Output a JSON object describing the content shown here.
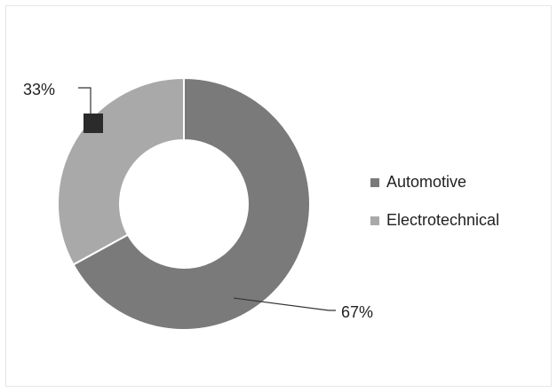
{
  "chart_data": {
    "type": "pie",
    "variant": "donut",
    "categories": [
      "Automotive",
      "Electrotechnical"
    ],
    "values": [
      67,
      33
    ],
    "data_labels": [
      "67%",
      "33%"
    ],
    "colors": [
      "#7a7a7a",
      "#a9a9a9"
    ],
    "legend_placement": "right",
    "title": ""
  }
}
